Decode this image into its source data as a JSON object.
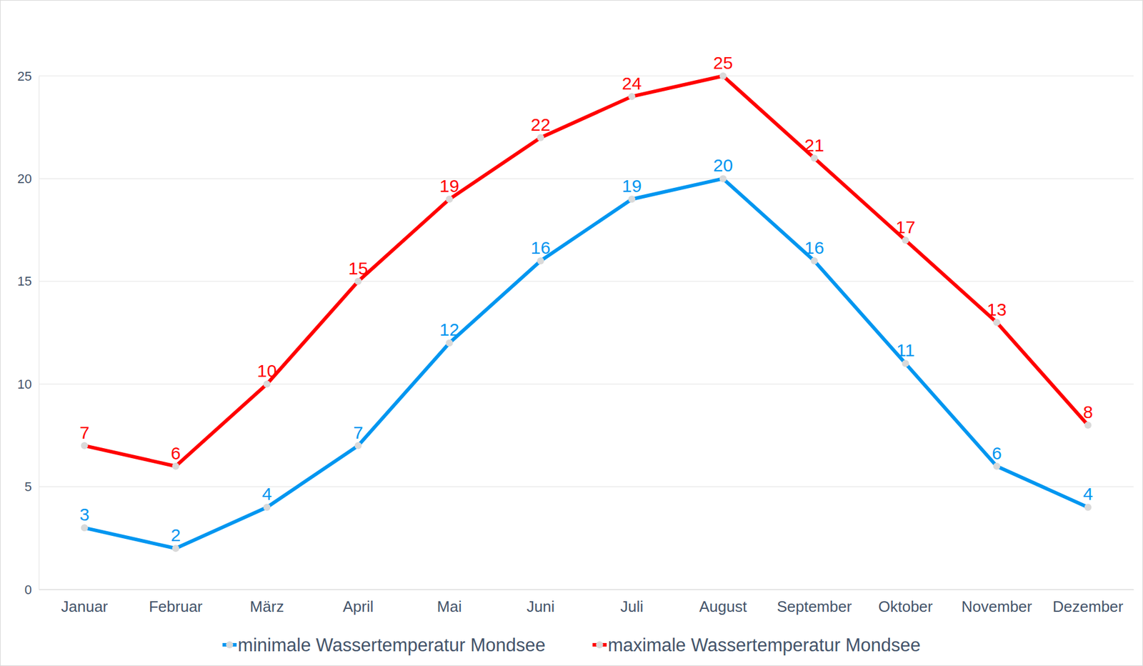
{
  "chart_data": {
    "type": "line",
    "categories": [
      "Januar",
      "Februar",
      "März",
      "April",
      "Mai",
      "Juni",
      "Juli",
      "August",
      "September",
      "Oktober",
      "November",
      "Dezember"
    ],
    "series": [
      {
        "name": "minimale Wassertemperatur Mondsee",
        "color": "#0096f0",
        "marker": "circle",
        "values": [
          3,
          2,
          4,
          7,
          12,
          16,
          19,
          20,
          16,
          11,
          6,
          4
        ]
      },
      {
        "name": "maximale Wassertemperatur Mondsee",
        "color": "#ff0000",
        "marker": "circle",
        "values": [
          7,
          6,
          10,
          15,
          19,
          22,
          24,
          25,
          21,
          17,
          13,
          8
        ]
      }
    ],
    "ylim": [
      0,
      25
    ],
    "yticks": [
      0,
      5,
      10,
      15,
      20,
      25
    ],
    "grid": true,
    "legend": "bottom",
    "data_labels": true
  }
}
